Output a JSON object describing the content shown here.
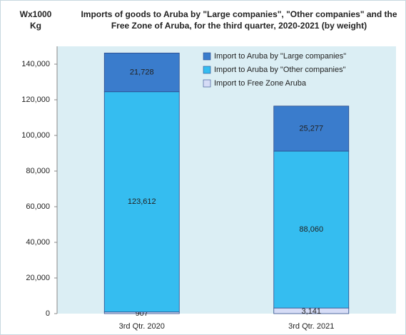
{
  "chart_data": {
    "type": "stacked_bar",
    "title": "Imports of goods to Aruba by \"Large companies\", \"Other companies\" and the Free Zone of Aruba, for the third quarter, 2020-2021 (by weight)",
    "y_label": "Wx1000 Kg",
    "categories": [
      "3rd Qtr. 2020",
      "3rd Qtr. 2021"
    ],
    "series": [
      {
        "name": "Import to Free Zone Aruba",
        "color": "#d6dcf6",
        "values": [
          907,
          3141
        ],
        "value_labels": [
          "907",
          "3,141"
        ]
      },
      {
        "name": "Import to Aruba by \"Other companies\"",
        "color": "#35bdf0",
        "values": [
          123612,
          88060
        ],
        "value_labels": [
          "123,612",
          "88,060"
        ]
      },
      {
        "name": "Import to Aruba by \"Large companies\"",
        "color": "#3a7ccc",
        "values": [
          21728,
          25277
        ],
        "value_labels": [
          "21,728",
          "25,277"
        ]
      }
    ],
    "ylim": [
      0,
      150000
    ],
    "yticks": [
      0,
      {
        "value": 20000,
        "label": "20,000"
      },
      {
        "value": 40000,
        "label": "40,000"
      },
      {
        "value": 60000,
        "label": "60,000"
      },
      {
        "value": 80000,
        "label": "80,000"
      },
      {
        "value": 100000,
        "label": "100,000"
      },
      {
        "value": 120000,
        "label": "120,000"
      },
      {
        "value": 140000,
        "label": "140,000"
      }
    ],
    "legend": "top-right"
  }
}
